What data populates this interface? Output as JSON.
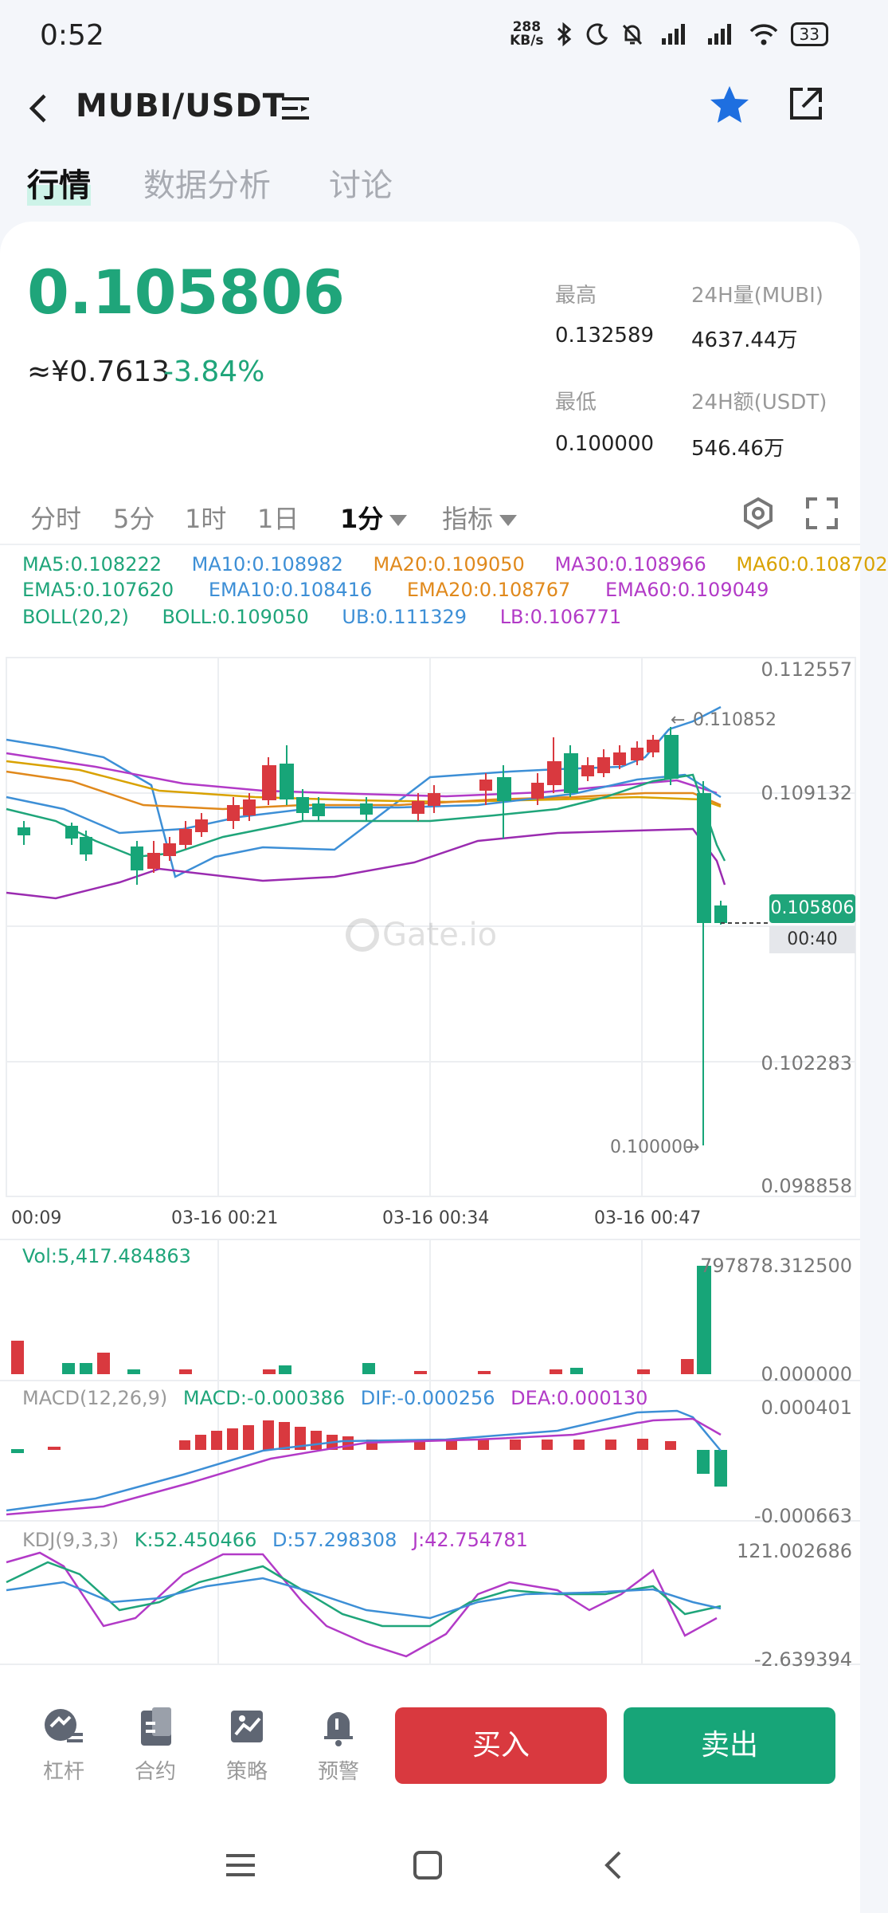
{
  "status_bar": {
    "time": "0:52",
    "net_speed_value": "288",
    "net_speed_unit": "KB/s",
    "battery": "33",
    "icons": [
      "bluetooth-icon",
      "moon-icon",
      "mute-icon",
      "signal-icon",
      "signal-icon",
      "wifi-icon",
      "battery-icon"
    ]
  },
  "header": {
    "pair": "MUBI/USDT",
    "tabs": [
      "行情",
      "数据分析",
      "讨论"
    ]
  },
  "ticker": {
    "price": "0.105806",
    "cny": "≈¥0.7613",
    "change": "-3.84%",
    "high_label": "最高",
    "high": "0.132589",
    "vol_label": "24H量(MUBI)",
    "vol": "4637.44万",
    "low_label": "最低",
    "low": "0.100000",
    "amount_label": "24H额(USDT)",
    "amount": "546.46万"
  },
  "periods": {
    "items": [
      "分时",
      "5分",
      "1时",
      "1日"
    ],
    "selected": "1分",
    "indicator": "指标"
  },
  "indicators": {
    "ma5": "MA5:0.108222",
    "ma10": "MA10:0.108982",
    "ma20": "MA20:0.109050",
    "ma30": "MA30:0.108966",
    "ma60": "MA60:0.108702",
    "ema5": "EMA5:0.107620",
    "ema10": "EMA10:0.108416",
    "ema20": "EMA20:0.108767",
    "ema60": "EMA60:0.109049",
    "boll": "BOLL(20,2)",
    "boll_val": "BOLL:0.109050",
    "ub": "UB:0.111329",
    "lb": "LB:0.106771"
  },
  "chart": {
    "watermark": "Gate.io",
    "high_marker": "0.110852",
    "low_marker": "0.100000",
    "last_price_tag": "0.105806",
    "countdown": "00:40",
    "vol_label": "Vol:5,417.484863",
    "vol_max": "797878.312500",
    "vol_min": "0.000000",
    "macd_label": "MACD(12,26,9)",
    "macd_val": "MACD:-0.000386",
    "dif_val": "DIF:-0.000256",
    "dea_val": "DEA:0.000130",
    "macd_max": "0.000401",
    "macd_min": "-0.000663",
    "kdj_label": "KDJ(9,3,3)",
    "k_val": "K:52.450466",
    "d_val": "D:57.298308",
    "j_val": "J:42.754781",
    "kdj_max": "121.002686",
    "kdj_min": "-2.639394"
  },
  "chart_data": {
    "type": "candlestick",
    "y_ticks": [
      "0.112557",
      "0.109132",
      "0.102283",
      "0.098858"
    ],
    "x_ticks": [
      "00:09",
      "03-16 00:21",
      "03-16 00:34",
      "03-16 00:47"
    ],
    "ylim": [
      0.098858,
      0.112557
    ],
    "last_price": 0.105806
  },
  "bottom": {
    "items": [
      "杠杆",
      "合约",
      "策略",
      "预警"
    ],
    "buy": "买入",
    "sell": "卖出"
  },
  "colors": {
    "up": "#17a578",
    "down": "#d9393f",
    "ma5": "#1fa57a",
    "ma10": "#3d8fd6",
    "ma20": "#e0891c",
    "ma30": "#b23ac7",
    "ma60": "#d9a200"
  }
}
